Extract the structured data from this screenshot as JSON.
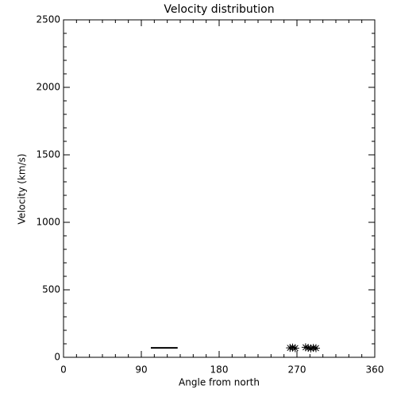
{
  "chart_data": {
    "type": "scatter",
    "title": "Velocity distribution",
    "xlabel": "Angle from north",
    "ylabel": "Velocity (km/s)",
    "xlim": [
      0,
      360
    ],
    "xticks": [
      0,
      90,
      180,
      270,
      360
    ],
    "xminorticks": [
      15,
      30,
      45,
      60,
      75,
      105,
      120,
      135,
      150,
      165,
      195,
      210,
      225,
      240,
      255,
      285,
      300,
      315,
      330,
      345
    ],
    "ylim": [
      0,
      2500
    ],
    "yticks": [
      0,
      500,
      1000,
      1500,
      2000,
      2500
    ],
    "yminorticks": [
      100,
      200,
      300,
      400,
      600,
      700,
      800,
      900,
      1100,
      1200,
      1300,
      1400,
      1600,
      1700,
      1800,
      1900,
      2100,
      2200,
      2300,
      2400
    ],
    "color": "#000000",
    "series": [
      {
        "type": "line",
        "color": "#000000",
        "x": [
          101,
          132
        ],
        "values": [
          70,
          70
        ]
      },
      {
        "type": "scatter",
        "color": "#000000",
        "x": [
          262,
          265,
          268,
          280,
          283,
          286,
          289,
          292
        ],
        "values": [
          70,
          72,
          68,
          74,
          70,
          66,
          70,
          68
        ]
      }
    ]
  }
}
